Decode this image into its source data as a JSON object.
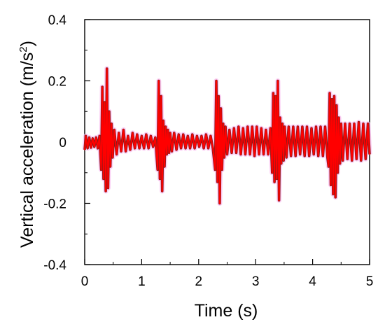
{
  "chart_data": {
    "type": "line",
    "title": "",
    "xlabel": "Time  (s)",
    "ylabel_main": "Vertical acceleration  (m/s",
    "ylabel_sup": "2",
    "ylabel_close": ")",
    "xlim": [
      0,
      5
    ],
    "ylim": [
      -0.4,
      0.4
    ],
    "x_ticks": [
      0,
      1,
      2,
      3,
      4,
      5
    ],
    "x_tick_labels": [
      "0",
      "1",
      "2",
      "3",
      "4",
      "5"
    ],
    "y_ticks": [
      0.4,
      0.2,
      0,
      -0.2,
      -0.4
    ],
    "y_tick_labels": [
      "0.4",
      "0.2",
      "0",
      "-0.2",
      "-0.4"
    ],
    "grid": false,
    "legend": "none",
    "series": [
      {
        "color": "#ff0000",
        "shadow_color": "#8b1a1a",
        "x": [
          0.0,
          0.02,
          0.05,
          0.08,
          0.11,
          0.14,
          0.17,
          0.2,
          0.23,
          0.26,
          0.29,
          0.31,
          0.33,
          0.35,
          0.37,
          0.39,
          0.41,
          0.43,
          0.45,
          0.47,
          0.49,
          0.52,
          0.56,
          0.6,
          0.64,
          0.68,
          0.72,
          0.76,
          0.8,
          0.84,
          0.88,
          0.92,
          0.96,
          1.0,
          1.04,
          1.08,
          1.12,
          1.16,
          1.2,
          1.24,
          1.28,
          1.3,
          1.32,
          1.34,
          1.36,
          1.38,
          1.4,
          1.42,
          1.44,
          1.46,
          1.48,
          1.5,
          1.53,
          1.57,
          1.61,
          1.65,
          1.69,
          1.73,
          1.77,
          1.81,
          1.85,
          1.89,
          1.93,
          1.97,
          2.01,
          2.05,
          2.09,
          2.13,
          2.17,
          2.21,
          2.25,
          2.29,
          2.31,
          2.33,
          2.35,
          2.37,
          2.39,
          2.41,
          2.43,
          2.45,
          2.47,
          2.5,
          2.54,
          2.58,
          2.62,
          2.66,
          2.7,
          2.74,
          2.78,
          2.82,
          2.86,
          2.9,
          2.94,
          2.98,
          3.02,
          3.06,
          3.1,
          3.14,
          3.18,
          3.22,
          3.26,
          3.29,
          3.31,
          3.33,
          3.35,
          3.37,
          3.39,
          3.41,
          3.43,
          3.45,
          3.47,
          3.49,
          3.51,
          3.54,
          3.58,
          3.62,
          3.66,
          3.7,
          3.74,
          3.78,
          3.82,
          3.86,
          3.9,
          3.94,
          3.98,
          4.02,
          4.06,
          4.1,
          4.14,
          4.18,
          4.22,
          4.26,
          4.28,
          4.3,
          4.32,
          4.34,
          4.36,
          4.38,
          4.4,
          4.42,
          4.44,
          4.46,
          4.48,
          4.5,
          4.53,
          4.57,
          4.61,
          4.65,
          4.69,
          4.73,
          4.77,
          4.81,
          4.85,
          4.89,
          4.93,
          4.97,
          5.0
        ],
        "values": [
          -0.025,
          0.02,
          -0.02,
          0.015,
          -0.018,
          0.012,
          -0.015,
          0.015,
          -0.02,
          0.02,
          -0.09,
          0.18,
          -0.12,
          0.13,
          -0.16,
          0.24,
          -0.15,
          0.1,
          -0.08,
          0.06,
          -0.05,
          0.04,
          -0.04,
          0.03,
          -0.03,
          0.04,
          -0.03,
          0.02,
          -0.025,
          0.03,
          -0.02,
          0.025,
          -0.02,
          0.02,
          -0.02,
          0.025,
          -0.02,
          0.02,
          -0.015,
          0.015,
          -0.09,
          0.2,
          -0.12,
          0.15,
          -0.16,
          0.07,
          -0.08,
          0.05,
          -0.04,
          0.04,
          -0.035,
          0.03,
          -0.03,
          0.03,
          -0.025,
          0.025,
          -0.02,
          0.025,
          -0.02,
          0.02,
          -0.02,
          0.025,
          -0.02,
          0.02,
          -0.015,
          0.02,
          -0.02,
          0.025,
          -0.02,
          0.02,
          -0.02,
          -0.09,
          0.2,
          -0.13,
          0.15,
          -0.2,
          0.11,
          -0.09,
          0.06,
          -0.05,
          0.05,
          -0.04,
          0.04,
          -0.035,
          0.045,
          -0.035,
          0.05,
          -0.04,
          0.045,
          -0.04,
          0.05,
          -0.04,
          0.05,
          -0.045,
          0.05,
          -0.04,
          0.045,
          -0.04,
          0.04,
          -0.04,
          0.045,
          -0.1,
          0.16,
          -0.13,
          0.15,
          -0.12,
          0.2,
          -0.19,
          0.08,
          -0.07,
          0.06,
          -0.06,
          0.05,
          -0.05,
          0.05,
          -0.045,
          0.05,
          -0.045,
          0.05,
          -0.04,
          0.05,
          -0.045,
          0.05,
          -0.045,
          0.045,
          -0.04,
          0.05,
          -0.045,
          0.05,
          -0.045,
          0.05,
          -0.05,
          -0.08,
          0.16,
          -0.14,
          0.14,
          -0.17,
          0.15,
          -0.18,
          0.12,
          -0.1,
          0.08,
          -0.07,
          0.06,
          -0.06,
          0.06,
          -0.055,
          0.06,
          -0.06,
          0.06,
          -0.055,
          0.065,
          -0.06,
          0.06,
          -0.055,
          0.06,
          -0.04
        ]
      }
    ]
  }
}
